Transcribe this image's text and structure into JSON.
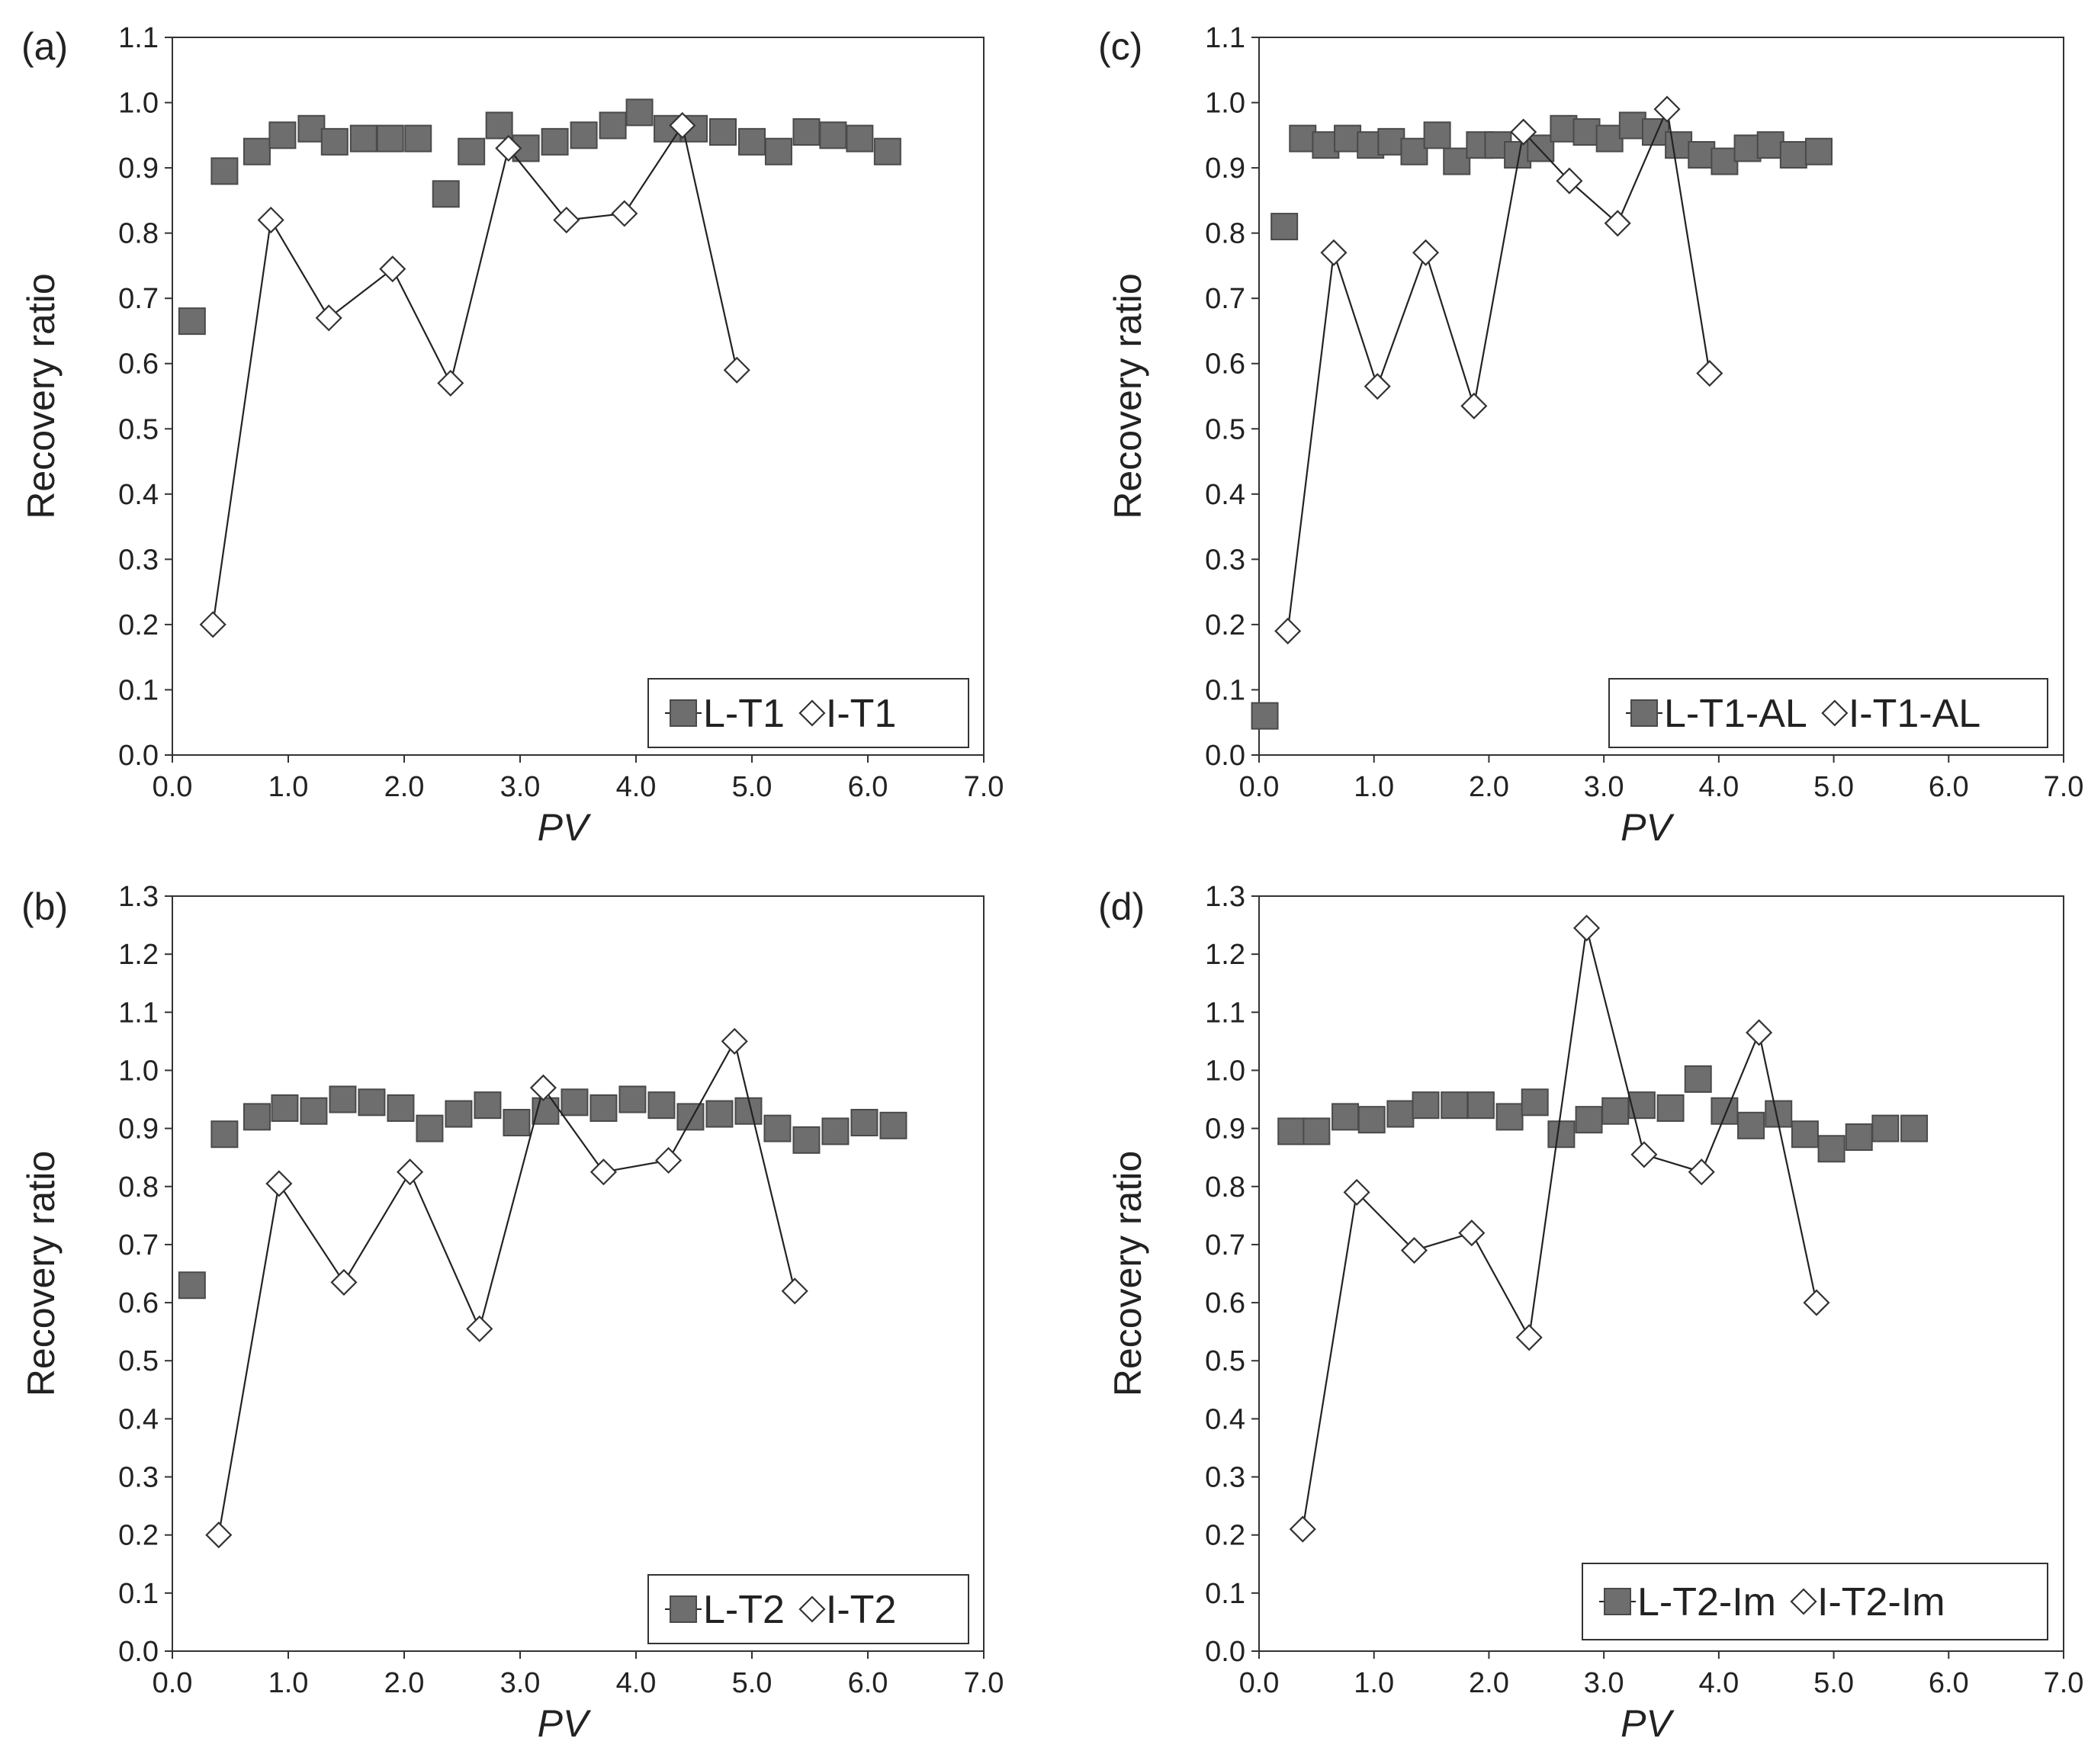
{
  "colors": {
    "l_series_fill": "#6e6e6e",
    "l_series_stroke": "#4a4a4a",
    "i_series_fill": "#ffffff",
    "i_series_stroke": "#333333",
    "axis": "#333333"
  },
  "chart_data": [
    {
      "panel": "(a)",
      "type": "line",
      "xlabel": "PV",
      "ylabel": "Recovery ratio",
      "xlim": [
        0,
        7
      ],
      "ylim": [
        0,
        1.1
      ],
      "xticks": [
        "0.0",
        "1.0",
        "2.0",
        "3.0",
        "4.0",
        "5.0",
        "6.0",
        "7.0"
      ],
      "yticks": [
        "0.0",
        "0.1",
        "0.2",
        "0.3",
        "0.4",
        "0.5",
        "0.6",
        "0.7",
        "0.8",
        "0.9",
        "1.0",
        "1.1"
      ],
      "legend": [
        "L-T1",
        "I-T1"
      ],
      "series": [
        {
          "name": "L-T1",
          "marker": "square",
          "x": [
            0.17,
            0.45,
            0.73,
            0.95,
            1.2,
            1.4,
            1.65,
            1.88,
            2.12,
            2.36,
            2.58,
            2.82,
            3.05,
            3.3,
            3.55,
            3.8,
            4.03,
            4.27,
            4.5,
            4.75,
            5.0,
            5.23,
            5.47,
            5.7,
            5.93,
            6.17
          ],
          "y": [
            0.665,
            0.895,
            0.925,
            0.95,
            0.96,
            0.94,
            0.945,
            0.945,
            0.945,
            0.86,
            0.925,
            0.965,
            0.93,
            0.94,
            0.95,
            0.965,
            0.985,
            0.96,
            0.96,
            0.955,
            0.94,
            0.925,
            0.955,
            0.95,
            0.945,
            0.925
          ]
        },
        {
          "name": "I-T1",
          "marker": "diamond",
          "line": true,
          "x": [
            0.35,
            0.85,
            1.35,
            1.9,
            2.4,
            2.9,
            3.4,
            3.9,
            4.4,
            4.87
          ],
          "y": [
            0.2,
            0.82,
            0.67,
            0.745,
            0.57,
            0.93,
            0.82,
            0.83,
            0.965,
            0.59
          ]
        }
      ]
    },
    {
      "panel": "(b)",
      "type": "line",
      "xlabel": "PV",
      "ylabel": "Recovery ratio",
      "xlim": [
        0,
        7
      ],
      "ylim": [
        0,
        1.3
      ],
      "xticks": [
        "0.0",
        "1.0",
        "2.0",
        "3.0",
        "4.0",
        "5.0",
        "6.0",
        "7.0"
      ],
      "yticks": [
        "0.0",
        "0.1",
        "0.2",
        "0.3",
        "0.4",
        "0.5",
        "0.6",
        "0.7",
        "0.8",
        "0.9",
        "1.0",
        "1.1",
        "1.2",
        "1.3"
      ],
      "legend": [
        "L-T2",
        "I-T2"
      ],
      "series": [
        {
          "name": "L-T2",
          "marker": "square",
          "x": [
            0.17,
            0.45,
            0.73,
            0.97,
            1.22,
            1.47,
            1.72,
            1.97,
            2.22,
            2.47,
            2.72,
            2.97,
            3.22,
            3.47,
            3.72,
            3.97,
            4.22,
            4.47,
            4.72,
            4.97,
            5.22,
            5.47,
            5.72,
            5.97,
            6.22
          ],
          "y": [
            0.63,
            0.89,
            0.92,
            0.935,
            0.93,
            0.95,
            0.945,
            0.935,
            0.9,
            0.925,
            0.94,
            0.91,
            0.93,
            0.945,
            0.935,
            0.95,
            0.94,
            0.92,
            0.925,
            0.93,
            0.9,
            0.88,
            0.895,
            0.91,
            0.905
          ]
        },
        {
          "name": "I-T2",
          "marker": "diamond",
          "line": true,
          "x": [
            0.4,
            0.92,
            1.48,
            2.05,
            2.65,
            3.2,
            3.72,
            4.28,
            4.85,
            5.37
          ],
          "y": [
            0.2,
            0.805,
            0.635,
            0.825,
            0.555,
            0.97,
            0.825,
            0.845,
            1.05,
            0.62
          ]
        }
      ]
    },
    {
      "panel": "(c)",
      "type": "line",
      "xlabel": "PV",
      "ylabel": "Recovery ratio",
      "xlim": [
        0,
        7
      ],
      "ylim": [
        0,
        1.1
      ],
      "xticks": [
        "0.0",
        "1.0",
        "2.0",
        "3.0",
        "4.0",
        "5.0",
        "6.0",
        "7.0"
      ],
      "yticks": [
        "0.0",
        "0.1",
        "0.2",
        "0.3",
        "0.4",
        "0.5",
        "0.6",
        "0.7",
        "0.8",
        "0.9",
        "1.0",
        "1.1"
      ],
      "legend": [
        "L-T1-AL",
        "I-T1-AL"
      ],
      "series": [
        {
          "name": "L-T1-AL",
          "marker": "square",
          "x": [
            0.05,
            0.22,
            0.38,
            0.58,
            0.77,
            0.97,
            1.15,
            1.35,
            1.55,
            1.72,
            1.92,
            2.08,
            2.25,
            2.45,
            2.65,
            2.85,
            3.05,
            3.25,
            3.45,
            3.65,
            3.85,
            4.05,
            4.25,
            4.45,
            4.65,
            4.87
          ],
          "y": [
            0.06,
            0.81,
            0.945,
            0.935,
            0.945,
            0.935,
            0.94,
            0.925,
            0.95,
            0.91,
            0.935,
            0.935,
            0.92,
            0.93,
            0.96,
            0.955,
            0.945,
            0.965,
            0.955,
            0.935,
            0.92,
            0.91,
            0.93,
            0.935,
            0.92,
            0.925
          ]
        },
        {
          "name": "I-T1-AL",
          "marker": "diamond",
          "line": true,
          "x": [
            0.25,
            0.65,
            1.03,
            1.45,
            1.87,
            2.3,
            2.7,
            3.12,
            3.55,
            3.92
          ],
          "y": [
            0.19,
            0.77,
            0.565,
            0.77,
            0.535,
            0.955,
            0.88,
            0.815,
            0.99,
            0.585
          ]
        }
      ]
    },
    {
      "panel": "(d)",
      "type": "line",
      "xlabel": "PV",
      "ylabel": "Recovery ratio",
      "xlim": [
        0,
        7
      ],
      "ylim": [
        0,
        1.3
      ],
      "xticks": [
        "0.0",
        "1.0",
        "2.0",
        "3.0",
        "4.0",
        "5.0",
        "6.0",
        "7.0"
      ],
      "yticks": [
        "0.0",
        "0.1",
        "0.2",
        "0.3",
        "0.4",
        "0.5",
        "0.6",
        "0.7",
        "0.8",
        "0.9",
        "1.0",
        "1.1",
        "1.2",
        "1.3"
      ],
      "legend": [
        "L-T2-Im",
        "I-T2-Im"
      ],
      "series": [
        {
          "name": "L-T2-Im",
          "marker": "square",
          "x": [
            0.28,
            0.5,
            0.75,
            0.98,
            1.23,
            1.45,
            1.7,
            1.93,
            2.18,
            2.4,
            2.63,
            2.87,
            3.1,
            3.33,
            3.58,
            3.82,
            4.05,
            4.28,
            4.52,
            4.75,
            4.98,
            5.22,
            5.45,
            5.7
          ],
          "y": [
            0.895,
            0.895,
            0.92,
            0.915,
            0.925,
            0.94,
            0.94,
            0.94,
            0.92,
            0.945,
            0.89,
            0.915,
            0.93,
            0.94,
            0.935,
            0.985,
            0.93,
            0.905,
            0.925,
            0.89,
            0.865,
            0.885,
            0.9,
            0.9
          ]
        },
        {
          "name": "I-T2-Im",
          "marker": "diamond",
          "line": true,
          "x": [
            0.38,
            0.85,
            1.35,
            1.85,
            2.35,
            2.85,
            3.35,
            3.85,
            4.35,
            4.85
          ],
          "y": [
            0.21,
            0.79,
            0.69,
            0.72,
            0.54,
            1.245,
            0.855,
            0.825,
            1.065,
            0.6
          ]
        }
      ]
    }
  ]
}
